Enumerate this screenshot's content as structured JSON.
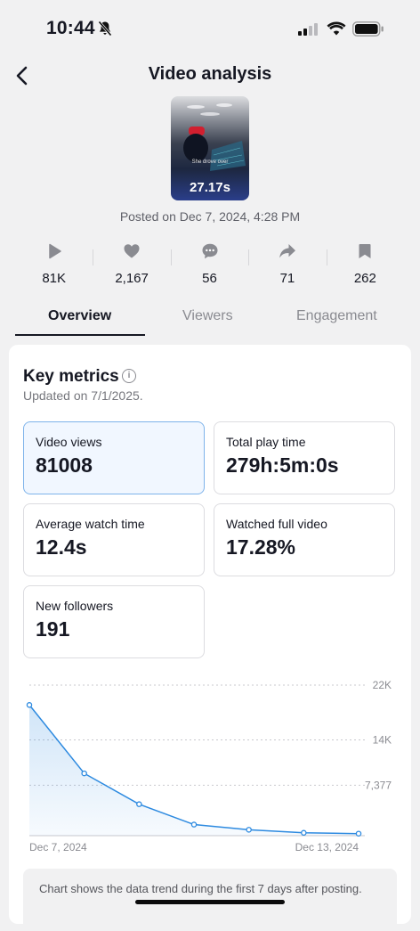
{
  "status": {
    "time": "10:44"
  },
  "header": {
    "title": "Video analysis"
  },
  "video": {
    "duration": "27.17s",
    "caption": "She drove over",
    "posted": "Posted on Dec 7, 2024, 4:28 PM"
  },
  "stats": [
    {
      "icon": "play-icon",
      "value": "81K"
    },
    {
      "icon": "heart-icon",
      "value": "2,167"
    },
    {
      "icon": "comment-icon",
      "value": "56"
    },
    {
      "icon": "share-icon",
      "value": "71"
    },
    {
      "icon": "bookmark-icon",
      "value": "262"
    }
  ],
  "tabs": [
    {
      "label": "Overview"
    },
    {
      "label": "Viewers"
    },
    {
      "label": "Engagement"
    }
  ],
  "key_metrics": {
    "title": "Key metrics",
    "updated": "Updated on 7/1/2025.",
    "items": [
      {
        "label": "Video views",
        "value": "81008"
      },
      {
        "label": "Total play time",
        "value": "279h:5m:0s"
      },
      {
        "label": "Average watch time",
        "value": "12.4s"
      },
      {
        "label": "Watched full video",
        "value": "17.28%"
      },
      {
        "label": "New followers",
        "value": "191"
      }
    ]
  },
  "chart_data": {
    "type": "area",
    "x": [
      "Dec 7, 2024",
      "Dec 8, 2024",
      "Dec 9, 2024",
      "Dec 10, 2024",
      "Dec 11, 2024",
      "Dec 12, 2024",
      "Dec 13, 2024"
    ],
    "values": [
      19100,
      9100,
      4600,
      1620,
      870,
      420,
      300
    ],
    "yticks": [
      {
        "value": 22000,
        "label": "22K"
      },
      {
        "value": 14000,
        "label": "14K"
      },
      {
        "value": 7377,
        "label": "7,377"
      }
    ],
    "xtick_labels": [
      "Dec 7, 2024",
      "Dec 13, 2024"
    ],
    "ylim": [
      0,
      22000
    ],
    "grid": true,
    "color": "#2d8ae0"
  },
  "note": "Chart shows the data trend during the first 7 days after posting."
}
